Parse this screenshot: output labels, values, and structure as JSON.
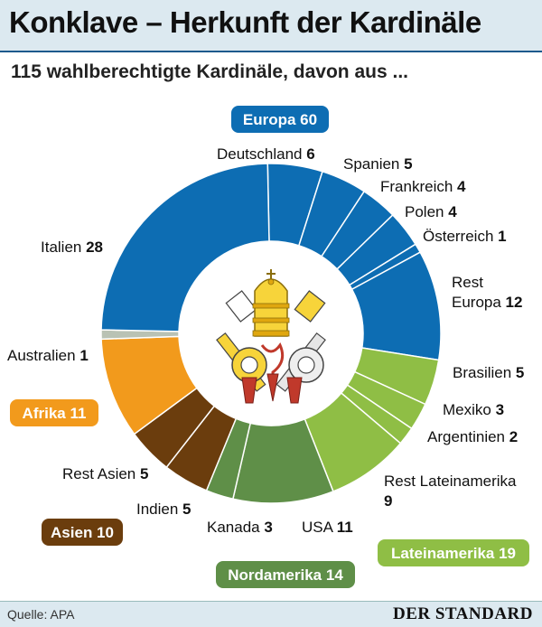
{
  "header": {
    "title": "Konklave – Herkunft der Kardinäle",
    "subtitle": "115 wahlberechtigte Kardinäle, davon aus ..."
  },
  "footer": {
    "source": "Quelle: APA",
    "brand": "DER STANDARD"
  },
  "colors": {
    "europa": "#0d6db3",
    "australien": "#b9c2b4",
    "afrika": "#f29a1c",
    "asien": "#6b3d0d",
    "nordamerika": "#5f8f48",
    "lateinamerika": "#8fbe45",
    "separator": "#ffffff"
  },
  "chart_data": {
    "type": "pie",
    "variant": "donut",
    "total": 115,
    "groups": [
      {
        "key": "europa",
        "label": "Europa 60",
        "value": 60
      },
      {
        "key": "lateinamerika",
        "label": "Lateinamerika 19",
        "value": 19
      },
      {
        "key": "nordamerika",
        "label": "Nordamerika 14",
        "value": 14
      },
      {
        "key": "asien",
        "label": "Asien 10",
        "value": 10
      },
      {
        "key": "afrika",
        "label": "Afrika 11",
        "value": 11
      }
    ],
    "slices": [
      {
        "name": "Deutschland",
        "value": 6,
        "group": "europa"
      },
      {
        "name": "Spanien",
        "value": 5,
        "group": "europa"
      },
      {
        "name": "Frankreich",
        "value": 4,
        "group": "europa"
      },
      {
        "name": "Polen",
        "value": 4,
        "group": "europa"
      },
      {
        "name": "Österreich",
        "value": 1,
        "group": "europa"
      },
      {
        "name": "Rest Europa",
        "value": 12,
        "group": "europa"
      },
      {
        "name": "Brasilien",
        "value": 5,
        "group": "lateinamerika"
      },
      {
        "name": "Mexiko",
        "value": 3,
        "group": "lateinamerika"
      },
      {
        "name": "Argentinien",
        "value": 2,
        "group": "lateinamerika"
      },
      {
        "name": "Rest Lateinamerika",
        "value": 9,
        "group": "lateinamerika"
      },
      {
        "name": "USA",
        "value": 11,
        "group": "nordamerika"
      },
      {
        "name": "Kanada",
        "value": 3,
        "group": "nordamerika"
      },
      {
        "name": "Indien",
        "value": 5,
        "group": "asien"
      },
      {
        "name": "Rest Asien",
        "value": 5,
        "group": "asien"
      },
      {
        "name": "Afrika",
        "value": 11,
        "group": "afrika"
      },
      {
        "name": "Australien",
        "value": 1,
        "group": "australien"
      },
      {
        "name": "Italien",
        "value": 28,
        "group": "europa"
      }
    ]
  }
}
